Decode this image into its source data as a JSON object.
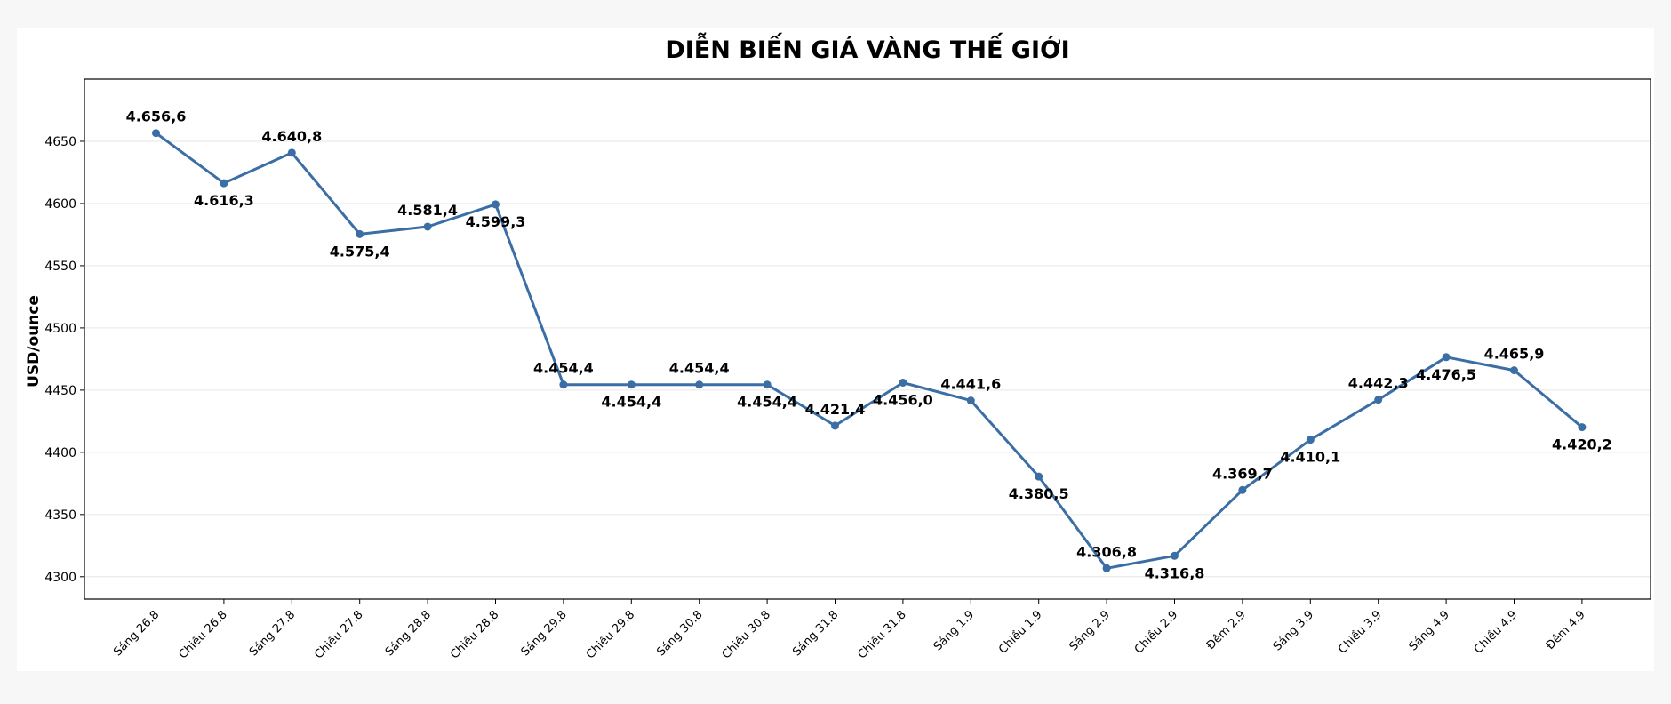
{
  "chart_data": {
    "type": "line",
    "title": "DIỄN BIẾN GIÁ VÀNG THẾ GIỚI",
    "xlabel": "",
    "ylabel": "USD/ounce",
    "ylim": [
      4282,
      4700
    ],
    "yticks": [
      4300,
      4350,
      4400,
      4450,
      4500,
      4550,
      4600,
      4650
    ],
    "grid": true,
    "line_color": "#3a6ea5",
    "categories": [
      "Sáng 26.8",
      "Chiều 26.8",
      "Sáng 27.8",
      "Chiều 27.8",
      "Sáng 28.8",
      "Chiều 28.8",
      "Sáng 29.8",
      "Chiều 29.8",
      "Sáng 30.8",
      "Chiều 30.8",
      "Sáng 31.8",
      "Chiều 31.8",
      "Sáng 1.9",
      "Chiều 1.9",
      "Sáng 2.9",
      "Chiều 2.9",
      "Đêm 2.9",
      "Sáng 3.9",
      "Chiều 3.9",
      "Sáng 4.9",
      "Chiều 4.9",
      "Đêm 4.9"
    ],
    "values": [
      4656.6,
      4616.3,
      4640.8,
      4575.4,
      4581.4,
      4599.3,
      4454.4,
      4454.4,
      4454.4,
      4454.4,
      4421.4,
      4456.0,
      4441.6,
      4380.5,
      4306.8,
      4316.8,
      4369.7,
      4410.1,
      4442.3,
      4476.5,
      4465.9,
      4420.2
    ],
    "data_labels": [
      "4.656,6",
      "4.616,3",
      "4.640,8",
      "4.575,4",
      "4.581,4",
      "4.599,3",
      "4.454,4",
      "4.454,4",
      "4.454,4",
      "4.454,4",
      "4.421,4",
      "4.456,0",
      "4.441,6",
      "4.380,5",
      "4.306,8",
      "4.316,8",
      "4.369,7",
      "4.410,1",
      "4.442,3",
      "4.476,5",
      "4.465,9",
      "4.420,2"
    ],
    "label_positions": [
      "above",
      "below",
      "above",
      "below",
      "above",
      "below",
      "above",
      "below",
      "above",
      "below",
      "above",
      "below",
      "above",
      "below",
      "above",
      "below",
      "above",
      "below",
      "above",
      "below",
      "above",
      "below"
    ]
  }
}
